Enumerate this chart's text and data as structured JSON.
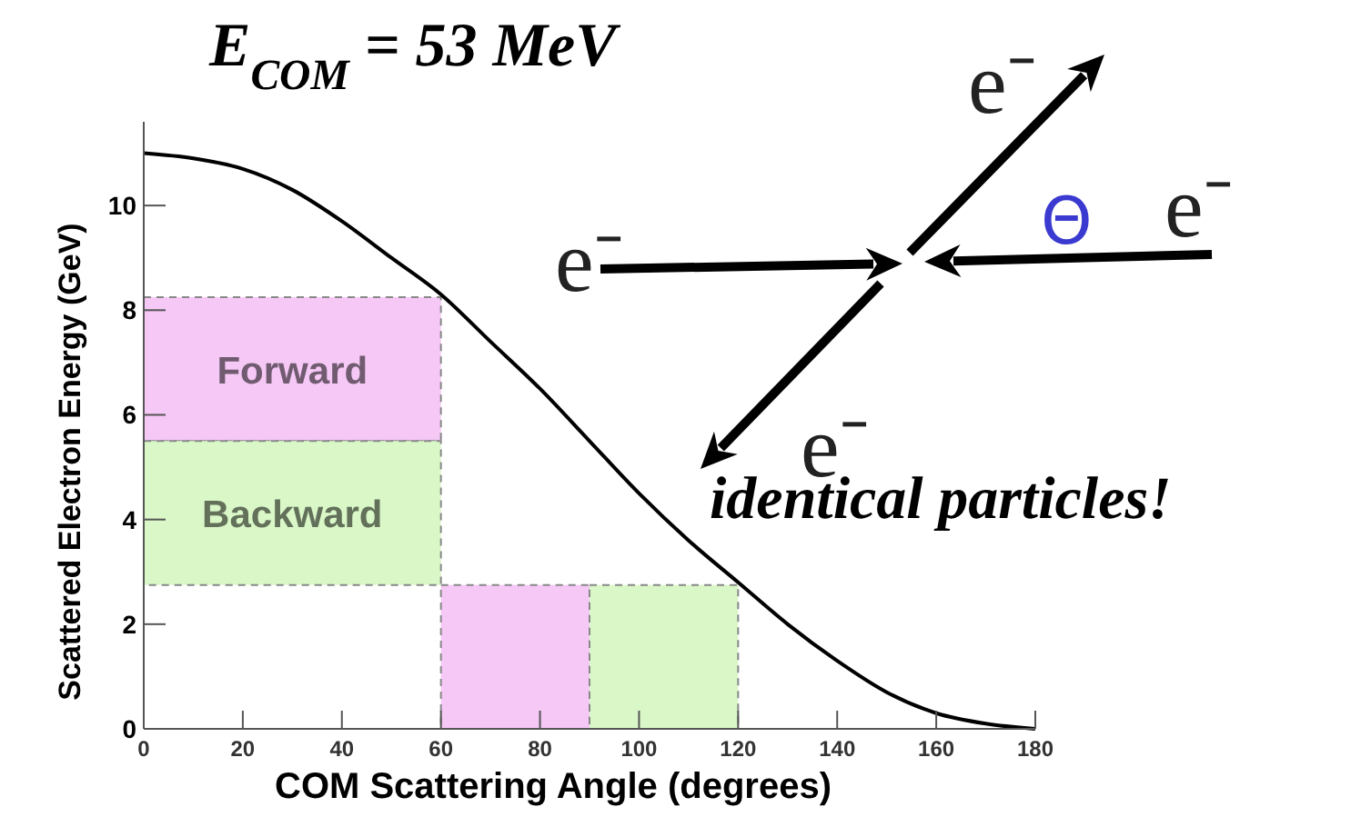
{
  "chart_data": {
    "type": "histogram",
    "title": "E$_{COM}$ = 53 MeV",
    "xlabel": "COM Scattering Angle (degrees)",
    "ylabel": "Scattered Electron Energy (GeV)",
    "bins": [
      0,
      60,
      90,
      120
    ],
    "series": [
      {
        "name": "Forward",
        "color": "#f5c8f5",
        "line_style": "dashed",
        "base": [
          5.5,
          0,
          null
        ],
        "values": [
          2.75,
          2.75,
          null
        ]
      },
      {
        "name": "Backward",
        "color": "#daf7c8",
        "line_style": "dashed",
        "base": [
          2.75,
          null,
          0
        ],
        "values": [
          2.75,
          null,
          2.75
        ]
      },
      {
        "type": "line",
        "color": "#000000",
        "x": [
          0,
          10,
          20,
          30,
          40,
          50,
          60,
          70,
          80,
          90,
          100,
          110,
          120,
          130,
          140,
          150,
          160,
          170,
          180
        ],
        "values": [
          11,
          10.9,
          10.7,
          10.3,
          9.7,
          9,
          8.3,
          7.4,
          6.5,
          5.5,
          4.5,
          3.6,
          2.8,
          2,
          1.3,
          0.7,
          0.3,
          0.1,
          0
        ]
      }
    ],
    "xlim": [
      0,
      180
    ],
    "xticks": [
      0,
      20,
      40,
      60,
      80,
      100,
      120,
      140,
      160,
      180
    ],
    "ylim": [
      0,
      11.6
    ],
    "yticks": [
      0,
      2,
      4,
      6,
      8,
      10
    ],
    "annotations": [
      "e⁻",
      "e⁻",
      "e⁻",
      "e⁻",
      "Θ",
      "identical particles!"
    ]
  }
}
